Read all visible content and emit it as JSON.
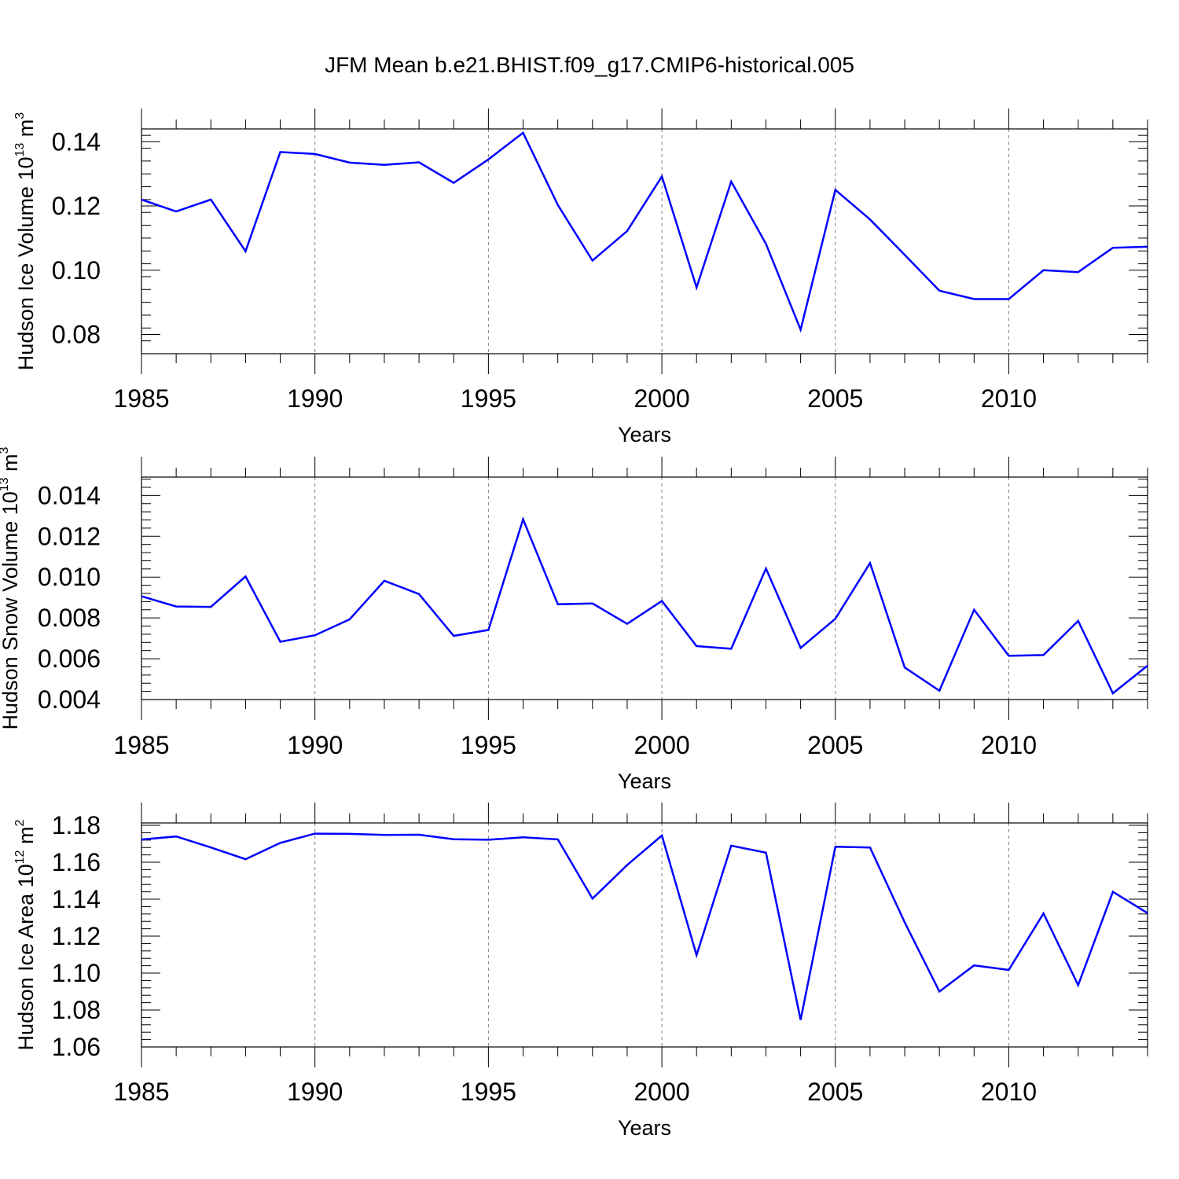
{
  "title": "JFM Mean b.e21.BHIST.f09_g17.CMIP6-historical.005",
  "colors": {
    "line": "#0000ff",
    "axis": "#000000",
    "grid": "#808080"
  },
  "chart_data": [
    {
      "type": "line",
      "name": "ice-volume",
      "ylabel": "Hudson Ice Volume 10",
      "ylabel_exp": "13",
      "ylabel_unit": " m",
      "ylabel_unit_exp": "3",
      "xlabel": "Years",
      "xlim": [
        1985,
        2014
      ],
      "ylim": [
        0.074,
        0.144
      ],
      "yticks": [
        0.08,
        0.1,
        0.12,
        0.14
      ],
      "ytick_labels": [
        "0.08",
        "0.10",
        "0.12",
        "0.14"
      ],
      "yminor_step": 0.004,
      "xticks": [
        1985,
        1990,
        1995,
        2000,
        2005,
        2010
      ],
      "xtick_labels": [
        "1985",
        "1990",
        "1995",
        "2000",
        "2005",
        "2010"
      ],
      "x": [
        1985,
        1986,
        1987,
        1988,
        1989,
        1990,
        1991,
        1992,
        1993,
        1994,
        1995,
        1996,
        1997,
        1998,
        1999,
        2000,
        2001,
        2002,
        2003,
        2004,
        2005,
        2006,
        2007,
        2008,
        2009,
        2010,
        2011,
        2012,
        2013,
        2014
      ],
      "values": [
        0.122,
        0.1183,
        0.122,
        0.1059,
        0.1368,
        0.1362,
        0.1335,
        0.1328,
        0.1336,
        0.1272,
        0.1345,
        0.1428,
        0.1203,
        0.103,
        0.1122,
        0.1292,
        0.0946,
        0.1276,
        0.1082,
        0.0815,
        0.125,
        0.1158,
        0.1048,
        0.0936,
        0.091,
        0.091,
        0.1,
        0.0994,
        0.107,
        0.1073
      ]
    },
    {
      "type": "line",
      "name": "snow-volume",
      "ylabel": "Hudson Snow Volume 10",
      "ylabel_exp": "13",
      "ylabel_unit": " m",
      "ylabel_unit_exp": "3",
      "xlabel": "Years",
      "xlim": [
        1985,
        2014
      ],
      "ylim": [
        0.004,
        0.0149
      ],
      "yticks": [
        0.004,
        0.006,
        0.008,
        0.01,
        0.012,
        0.014
      ],
      "ytick_labels": [
        "0.004",
        "0.006",
        "0.008",
        "0.010",
        "0.012",
        "0.014"
      ],
      "yminor_step": 0.0004,
      "xticks": [
        1985,
        1990,
        1995,
        2000,
        2005,
        2010
      ],
      "xtick_labels": [
        "1985",
        "1990",
        "1995",
        "2000",
        "2005",
        "2010"
      ],
      "x": [
        1985,
        1986,
        1987,
        1988,
        1989,
        1990,
        1991,
        1992,
        1993,
        1994,
        1995,
        1996,
        1997,
        1998,
        1999,
        2000,
        2001,
        2002,
        2003,
        2004,
        2005,
        2006,
        2007,
        2008,
        2009,
        2010,
        2011,
        2012,
        2013,
        2014
      ],
      "values": [
        0.00906,
        0.00856,
        0.00854,
        0.01003,
        0.00683,
        0.00715,
        0.00793,
        0.00982,
        0.00917,
        0.00712,
        0.00741,
        0.01283,
        0.00867,
        0.00871,
        0.00771,
        0.00883,
        0.00662,
        0.00649,
        0.01042,
        0.00653,
        0.00796,
        0.01069,
        0.00557,
        0.00443,
        0.0084,
        0.00614,
        0.00618,
        0.00785,
        0.00431,
        0.00566
      ]
    },
    {
      "type": "line",
      "name": "ice-area",
      "ylabel": "Hudson Ice Area 10",
      "ylabel_exp": "12",
      "ylabel_unit": " m",
      "ylabel_unit_exp": "2",
      "xlabel": "Years",
      "xlim": [
        1985,
        2014
      ],
      "ylim": [
        1.06,
        1.1813
      ],
      "yticks": [
        1.06,
        1.08,
        1.1,
        1.12,
        1.14,
        1.16,
        1.18
      ],
      "ytick_labels": [
        "1.06",
        "1.08",
        "1.10",
        "1.12",
        "1.14",
        "1.16",
        "1.18"
      ],
      "yminor_step": 0.004,
      "xticks": [
        1985,
        1990,
        1995,
        2000,
        2005,
        2010
      ],
      "xtick_labels": [
        "1985",
        "1990",
        "1995",
        "2000",
        "2005",
        "2010"
      ],
      "x": [
        1985,
        1986,
        1987,
        1988,
        1989,
        1990,
        1991,
        1992,
        1993,
        1994,
        1995,
        1996,
        1997,
        1998,
        1999,
        2000,
        2001,
        2002,
        2003,
        2004,
        2005,
        2006,
        2007,
        2008,
        2009,
        2010,
        2011,
        2012,
        2013,
        2014
      ],
      "values": [
        1.1723,
        1.174,
        1.168,
        1.1617,
        1.1705,
        1.1755,
        1.1754,
        1.1748,
        1.1749,
        1.1725,
        1.1722,
        1.1735,
        1.1724,
        1.1403,
        1.1585,
        1.1745,
        1.1097,
        1.169,
        1.1652,
        1.0747,
        1.1684,
        1.168,
        1.1275,
        1.09,
        1.1042,
        1.1017,
        1.1323,
        1.0935,
        1.144,
        1.1325
      ]
    }
  ]
}
